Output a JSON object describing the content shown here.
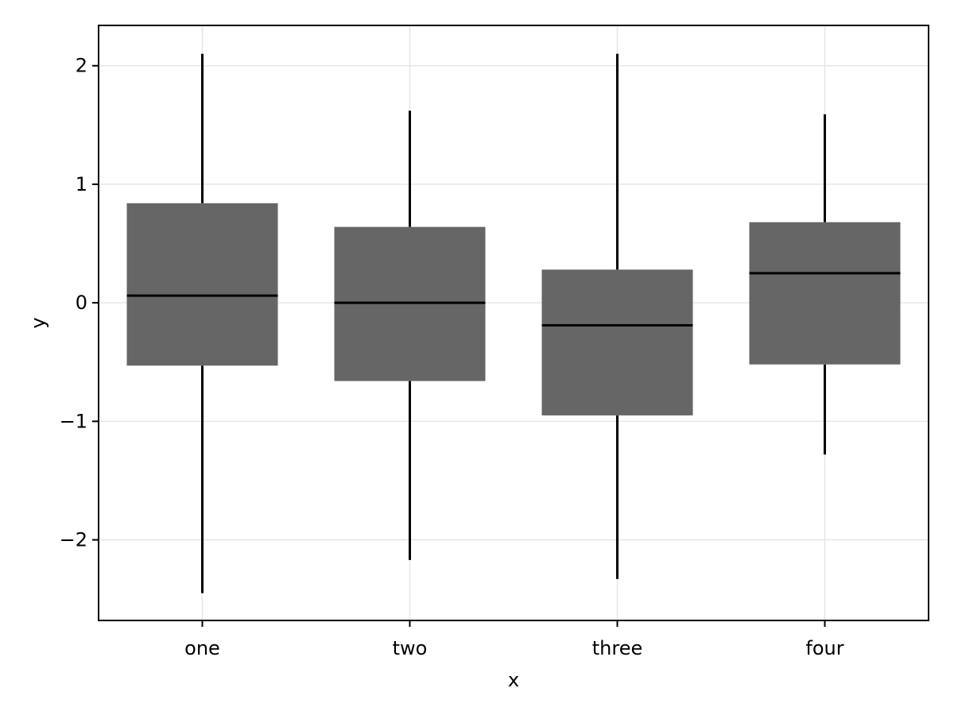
{
  "chart_data": {
    "type": "box",
    "title": "",
    "xlabel": "x",
    "ylabel": "y",
    "categories": [
      "one",
      "two",
      "three",
      "four"
    ],
    "boxes": [
      {
        "category": "one",
        "whisker_low": -2.45,
        "q1": -0.53,
        "median": 0.06,
        "q3": 0.84,
        "whisker_high": 2.1
      },
      {
        "category": "two",
        "whisker_low": -2.17,
        "q1": -0.66,
        "median": 0.0,
        "q3": 0.64,
        "whisker_high": 1.62
      },
      {
        "category": "three",
        "whisker_low": -2.33,
        "q1": -0.95,
        "median": -0.19,
        "q3": 0.28,
        "whisker_high": 2.1
      },
      {
        "category": "four",
        "whisker_low": -1.28,
        "q1": -0.52,
        "median": 0.25,
        "q3": 0.68,
        "whisker_high": 1.59
      }
    ],
    "yticks": [
      -2,
      -1,
      0,
      1,
      2
    ],
    "ytick_labels": [
      "−2",
      "−1",
      "0",
      "1",
      "2"
    ],
    "ylim": [
      -2.68,
      2.34
    ],
    "grid": true,
    "legend": "none",
    "colors": {
      "box_fill": "#666666",
      "median_line": "#000000",
      "whisker": "#000000",
      "grid": "#e6e6e6",
      "frame": "#000000"
    }
  }
}
